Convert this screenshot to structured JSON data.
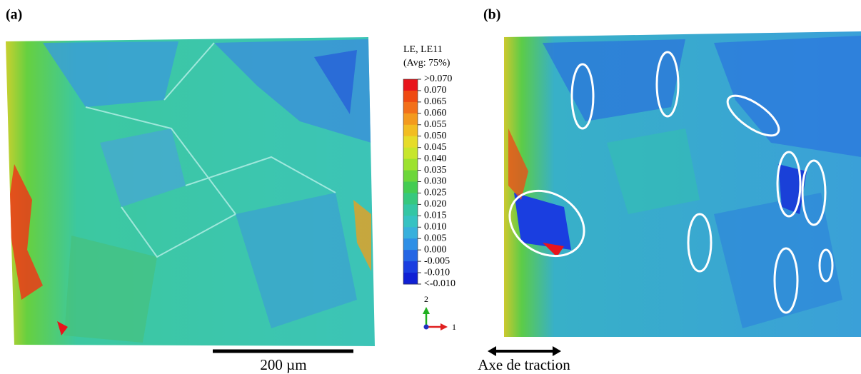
{
  "panels": [
    {
      "label": "(a)"
    },
    {
      "label": "(b)"
    }
  ],
  "legend": {
    "title": "LE, LE11",
    "subtitle": "(Avg: 75%)",
    "labels": [
      ">0.070",
      "0.070",
      "0.065",
      "0.060",
      "0.055",
      "0.050",
      "0.045",
      "0.040",
      "0.035",
      "0.030",
      "0.025",
      "0.020",
      "0.015",
      "0.010",
      "0.005",
      "0.000",
      "-0.005",
      "-0.010",
      "<-0.010"
    ],
    "colors": [
      "#e8141c",
      "#ef4a12",
      "#f2701a",
      "#f39a1e",
      "#f2bd22",
      "#e6dc2a",
      "#c7e62c",
      "#9ce22e",
      "#6cd63a",
      "#44cc52",
      "#36c87e",
      "#34c6a4",
      "#36c2c2",
      "#38b0dc",
      "#2e8fe6",
      "#2466e4",
      "#1a3ee0",
      "#1020d4"
    ]
  },
  "triad": {
    "axis_2": "2",
    "axis_1": "1"
  },
  "scale_bar": {
    "label": "200 µm"
  },
  "traction": {
    "label": "Axe de traction"
  }
}
